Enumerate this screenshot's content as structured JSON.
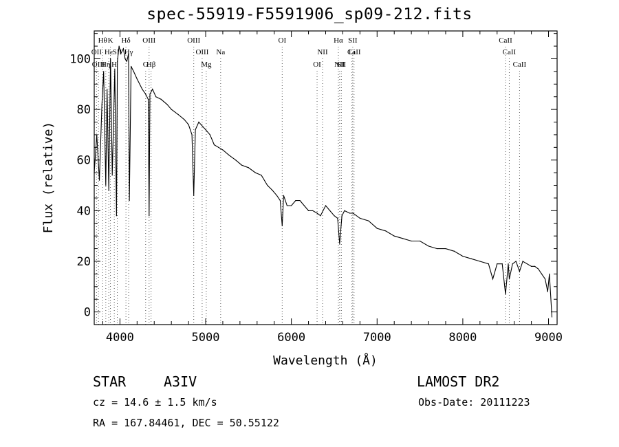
{
  "chart_data": {
    "type": "line",
    "title": "spec-55919-F5591906_sp09-212.fits",
    "xlabel": "Wavelength (Å)",
    "ylabel": "Flux (relative)",
    "xlim": [
      3700,
      9100
    ],
    "ylim": [
      -5,
      111
    ],
    "xticks": [
      4000,
      5000,
      6000,
      7000,
      8000,
      9000
    ],
    "yticks": [
      0,
      20,
      40,
      60,
      80,
      100
    ],
    "grid": false,
    "series": [
      {
        "x": [
          3700,
          3730,
          3760,
          3790,
          3810,
          3835,
          3850,
          3870,
          3890,
          3910,
          3940,
          3960,
          3970,
          3990,
          4010,
          4040,
          4060,
          4080,
          4100,
          4110,
          4130,
          4160,
          4200,
          4260,
          4300,
          4330,
          4340,
          4350,
          4380,
          4420,
          4480,
          4550,
          4600,
          4680,
          4750,
          4800,
          4840,
          4861,
          4880,
          4920,
          5000,
          5050,
          5100,
          5150,
          5200,
          5270,
          5350,
          5420,
          5500,
          5580,
          5650,
          5720,
          5780,
          5830,
          5870,
          5893,
          5910,
          5950,
          6000,
          6050,
          6100,
          6150,
          6200,
          6250,
          6300,
          6340,
          6400,
          6450,
          6500,
          6540,
          6563,
          6590,
          6620,
          6680,
          6720,
          6800,
          6900,
          7000,
          7100,
          7200,
          7300,
          7400,
          7500,
          7600,
          7700,
          7800,
          7900,
          8000,
          8100,
          8200,
          8300,
          8350,
          8400,
          8460,
          8498,
          8530,
          8542,
          8580,
          8620,
          8662,
          8700,
          8750,
          8800,
          8840,
          8880,
          8920,
          8960,
          8990,
          9010,
          9040
        ],
        "y": [
          55,
          70,
          52,
          82,
          95,
          50,
          88,
          48,
          100,
          54,
          96,
          38,
          99,
          105,
          102,
          104,
          100,
          99,
          102,
          44,
          97,
          95,
          92,
          88,
          86,
          84,
          38,
          86,
          88,
          85,
          84,
          82,
          80,
          78,
          76,
          74,
          70,
          46,
          72,
          75,
          72,
          70,
          66,
          65,
          64,
          62,
          60,
          58,
          57,
          55,
          54,
          50,
          48,
          46,
          44,
          34,
          46,
          42,
          42,
          44,
          44,
          42,
          40,
          40,
          39,
          38,
          42,
          40,
          38,
          37,
          27,
          38,
          40,
          39,
          39,
          37,
          36,
          33,
          32,
          30,
          29,
          28,
          28,
          26,
          25,
          25,
          24,
          22,
          21,
          20,
          19,
          13,
          19,
          19,
          7,
          19,
          13,
          19,
          20,
          16,
          20,
          19,
          18,
          18,
          17,
          15,
          13,
          8,
          15,
          -2
        ]
      }
    ],
    "lines": [
      {
        "wl": 3727,
        "label": "OII",
        "row": 1
      },
      {
        "wl": 3750,
        "label": "OIII",
        "row": 2
      },
      {
        "wl": 3798,
        "label": "Hθ",
        "row": 0
      },
      {
        "wl": 3835,
        "label": "Hη",
        "row": 2
      },
      {
        "wl": 3870,
        "label": "Hε",
        "row": 1
      },
      {
        "wl": 3889,
        "label": "K",
        "row": 0
      },
      {
        "wl": 3934,
        "label": "H",
        "row": 2
      },
      {
        "wl": 3969,
        "label": "SII",
        "row": 1
      },
      {
        "wl": 4070,
        "label": "Hδ",
        "row": 0
      },
      {
        "wl": 4102,
        "label": "Hγ",
        "row": 1
      },
      {
        "wl": 4300,
        "label": "G",
        "row": 2
      },
      {
        "wl": 4340,
        "label": "OIII",
        "row": 0
      },
      {
        "wl": 4363,
        "label": "Hβ",
        "row": 2
      },
      {
        "wl": 4861,
        "label": "OIII",
        "row": 0
      },
      {
        "wl": 4959,
        "label": "OIII",
        "row": 1
      },
      {
        "wl": 5007,
        "label": "Mg",
        "row": 2
      },
      {
        "wl": 5175,
        "label": "Na",
        "row": 1
      },
      {
        "wl": 5893,
        "label": "OI",
        "row": 0
      },
      {
        "wl": 6300,
        "label": "OI",
        "row": 2
      },
      {
        "wl": 6364,
        "label": "NII",
        "row": 1
      },
      {
        "wl": 6548,
        "label": "Hα",
        "row": 0
      },
      {
        "wl": 6563,
        "label": "NII",
        "row": 2
      },
      {
        "wl": 6583,
        "label": "SII",
        "row": 2
      },
      {
        "wl": 6707,
        "label": "Li",
        "row": 1
      },
      {
        "wl": 6716,
        "label": "SII",
        "row": 0
      },
      {
        "wl": 6731,
        "label": "CaII",
        "row": 1
      },
      {
        "wl": 8498,
        "label": "CaII",
        "row": 0
      },
      {
        "wl": 8542,
        "label": "CaII",
        "row": 1
      },
      {
        "wl": 8662,
        "label": "CaII",
        "row": 2
      }
    ]
  },
  "info": {
    "class": "STAR",
    "subclass": "A3IV",
    "survey": "LAMOST DR2",
    "cz": "cz = 14.6 ± 1.5 km/s",
    "obsdate": "Obs-Date: 20111223",
    "coords": "RA = 167.84461, DEC =  50.55122"
  }
}
